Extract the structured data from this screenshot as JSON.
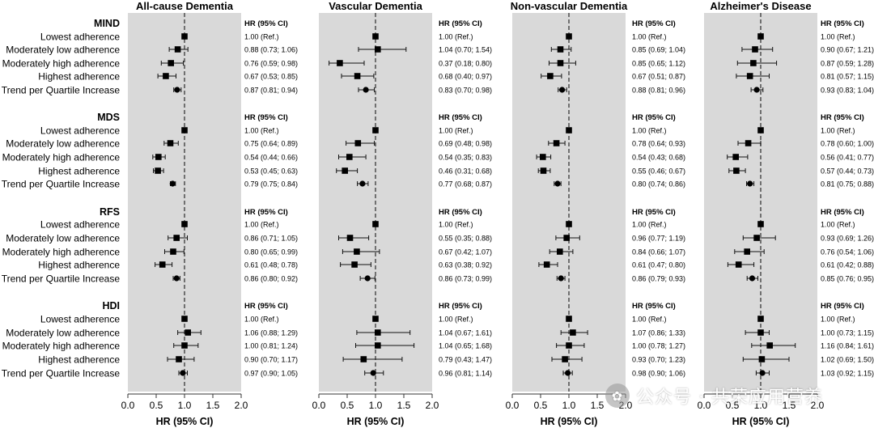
{
  "chart_data": {
    "type": "forest",
    "row_labels": [
      "Lowest adherence",
      "Moderately low adherence",
      "Moderately high adherence",
      "Highest adherence",
      "Trend per Quartile Increase"
    ],
    "groups": [
      "MIND",
      "MDS",
      "RFS",
      "HDI"
    ],
    "xlabel": "HR (95% CI)",
    "ci_header": "HR (95% CI)",
    "xlim": [
      0,
      2.0
    ],
    "ticks": [
      "0.0",
      "0.5",
      "1.0",
      "1.5",
      "2.0"
    ],
    "reference_line": 1.0,
    "panels": [
      {
        "title": "All-cause Dementia",
        "groups": [
          {
            "name": "MIND",
            "rows": [
              {
                "hr": 1.0,
                "lo": 1.0,
                "hi": 1.0,
                "text": "1.00 (Ref.)"
              },
              {
                "hr": 0.88,
                "lo": 0.73,
                "hi": 1.06,
                "text": "0.88 (0.73; 1.06)"
              },
              {
                "hr": 0.76,
                "lo": 0.59,
                "hi": 0.98,
                "text": "0.76 (0.59; 0.98)"
              },
              {
                "hr": 0.67,
                "lo": 0.53,
                "hi": 0.85,
                "text": "0.67 (0.53; 0.85)"
              },
              {
                "hr": 0.87,
                "lo": 0.81,
                "hi": 0.94,
                "text": "0.87 (0.81; 0.94)"
              }
            ]
          },
          {
            "name": "MDS",
            "rows": [
              {
                "hr": 1.0,
                "lo": 1.0,
                "hi": 1.0,
                "text": "1.00 (Ref.)"
              },
              {
                "hr": 0.75,
                "lo": 0.64,
                "hi": 0.89,
                "text": "0.75 (0.64; 0.89)"
              },
              {
                "hr": 0.54,
                "lo": 0.44,
                "hi": 0.66,
                "text": "0.54 (0.44; 0.66)"
              },
              {
                "hr": 0.53,
                "lo": 0.45,
                "hi": 0.63,
                "text": "0.53 (0.45; 0.63)"
              },
              {
                "hr": 0.79,
                "lo": 0.75,
                "hi": 0.84,
                "text": "0.79 (0.75; 0.84)"
              }
            ]
          },
          {
            "name": "RFS",
            "rows": [
              {
                "hr": 1.0,
                "lo": 1.0,
                "hi": 1.0,
                "text": "1.00 (Ref.)"
              },
              {
                "hr": 0.86,
                "lo": 0.71,
                "hi": 1.05,
                "text": "0.86 (0.71; 1.05)"
              },
              {
                "hr": 0.8,
                "lo": 0.65,
                "hi": 0.99,
                "text": "0.80 (0.65; 0.99)"
              },
              {
                "hr": 0.61,
                "lo": 0.48,
                "hi": 0.78,
                "text": "0.61 (0.48; 0.78)"
              },
              {
                "hr": 0.86,
                "lo": 0.8,
                "hi": 0.92,
                "text": "0.86 (0.80; 0.92)"
              }
            ]
          },
          {
            "name": "HDI",
            "rows": [
              {
                "hr": 1.0,
                "lo": 1.0,
                "hi": 1.0,
                "text": "1.00 (Ref.)"
              },
              {
                "hr": 1.06,
                "lo": 0.88,
                "hi": 1.29,
                "text": "1.06 (0.88; 1.29)"
              },
              {
                "hr": 1.0,
                "lo": 0.81,
                "hi": 1.24,
                "text": "1.00 (0.81; 1.24)"
              },
              {
                "hr": 0.9,
                "lo": 0.7,
                "hi": 1.17,
                "text": "0.90 (0.70; 1.17)"
              },
              {
                "hr": 0.97,
                "lo": 0.9,
                "hi": 1.05,
                "text": "0.97 (0.90; 1.05)"
              }
            ]
          }
        ]
      },
      {
        "title": "Vascular Dementia",
        "groups": [
          {
            "name": "MIND",
            "rows": [
              {
                "hr": 1.0,
                "lo": 1.0,
                "hi": 1.0,
                "text": "1.00 (Ref.)"
              },
              {
                "hr": 1.04,
                "lo": 0.7,
                "hi": 1.54,
                "text": "1.04 (0.70; 1.54)"
              },
              {
                "hr": 0.37,
                "lo": 0.18,
                "hi": 0.8,
                "text": "0.37 (0.18; 0.80)"
              },
              {
                "hr": 0.68,
                "lo": 0.4,
                "hi": 0.97,
                "text": "0.68 (0.40; 0.97)"
              },
              {
                "hr": 0.83,
                "lo": 0.7,
                "hi": 0.98,
                "text": "0.83 (0.70; 0.98)"
              }
            ]
          },
          {
            "name": "MDS",
            "rows": [
              {
                "hr": 1.0,
                "lo": 1.0,
                "hi": 1.0,
                "text": "1.00 (Ref.)"
              },
              {
                "hr": 0.69,
                "lo": 0.48,
                "hi": 0.98,
                "text": "0.69 (0.48; 0.98)"
              },
              {
                "hr": 0.54,
                "lo": 0.35,
                "hi": 0.83,
                "text": "0.54 (0.35; 0.83)"
              },
              {
                "hr": 0.46,
                "lo": 0.31,
                "hi": 0.68,
                "text": "0.46 (0.31; 0.68)"
              },
              {
                "hr": 0.77,
                "lo": 0.68,
                "hi": 0.87,
                "text": "0.77 (0.68; 0.87)"
              }
            ]
          },
          {
            "name": "RFS",
            "rows": [
              {
                "hr": 1.0,
                "lo": 1.0,
                "hi": 1.0,
                "text": "1.00 (Ref.)"
              },
              {
                "hr": 0.55,
                "lo": 0.35,
                "hi": 0.88,
                "text": "0.55 (0.35; 0.88)"
              },
              {
                "hr": 0.67,
                "lo": 0.42,
                "hi": 1.07,
                "text": "0.67 (0.42; 1.07)"
              },
              {
                "hr": 0.63,
                "lo": 0.38,
                "hi": 0.92,
                "text": "0.63 (0.38; 0.92)"
              },
              {
                "hr": 0.86,
                "lo": 0.73,
                "hi": 0.99,
                "text": "0.86 (0.73; 0.99)"
              }
            ]
          },
          {
            "name": "HDI",
            "rows": [
              {
                "hr": 1.0,
                "lo": 1.0,
                "hi": 1.0,
                "text": "1.00 (Ref.)"
              },
              {
                "hr": 1.04,
                "lo": 0.67,
                "hi": 1.61,
                "text": "1.04 (0.67; 1.61)"
              },
              {
                "hr": 1.04,
                "lo": 0.65,
                "hi": 1.68,
                "text": "1.04 (0.65; 1.68)"
              },
              {
                "hr": 0.79,
                "lo": 0.43,
                "hi": 1.47,
                "text": "0.79 (0.43; 1.47)"
              },
              {
                "hr": 0.96,
                "lo": 0.81,
                "hi": 1.14,
                "text": "0.96 (0.81; 1.14)"
              }
            ]
          }
        ]
      },
      {
        "title": "Non-vascular Dementia",
        "groups": [
          {
            "name": "MIND",
            "rows": [
              {
                "hr": 1.0,
                "lo": 1.0,
                "hi": 1.0,
                "text": "1.00 (Ref.)"
              },
              {
                "hr": 0.85,
                "lo": 0.69,
                "hi": 1.04,
                "text": "0.85 (0.69; 1.04)"
              },
              {
                "hr": 0.85,
                "lo": 0.65,
                "hi": 1.12,
                "text": "0.85 (0.65; 1.12)"
              },
              {
                "hr": 0.67,
                "lo": 0.51,
                "hi": 0.87,
                "text": "0.67 (0.51; 0.87)"
              },
              {
                "hr": 0.88,
                "lo": 0.81,
                "hi": 0.96,
                "text": "0.88 (0.81; 0.96)"
              }
            ]
          },
          {
            "name": "MDS",
            "rows": [
              {
                "hr": 1.0,
                "lo": 1.0,
                "hi": 1.0,
                "text": "1.00 (Ref.)"
              },
              {
                "hr": 0.78,
                "lo": 0.64,
                "hi": 0.93,
                "text": "0.78 (0.64; 0.93)"
              },
              {
                "hr": 0.54,
                "lo": 0.43,
                "hi": 0.68,
                "text": "0.54 (0.43; 0.68)"
              },
              {
                "hr": 0.55,
                "lo": 0.46,
                "hi": 0.67,
                "text": "0.55 (0.46; 0.67)"
              },
              {
                "hr": 0.8,
                "lo": 0.74,
                "hi": 0.86,
                "text": "0.80 (0.74; 0.86)"
              }
            ]
          },
          {
            "name": "RFS",
            "rows": [
              {
                "hr": 1.0,
                "lo": 1.0,
                "hi": 1.0,
                "text": "1.00 (Ref.)"
              },
              {
                "hr": 0.96,
                "lo": 0.77,
                "hi": 1.19,
                "text": "0.96 (0.77; 1.19)"
              },
              {
                "hr": 0.84,
                "lo": 0.66,
                "hi": 1.07,
                "text": "0.84 (0.66; 1.07)"
              },
              {
                "hr": 0.61,
                "lo": 0.47,
                "hi": 0.8,
                "text": "0.61 (0.47; 0.80)"
              },
              {
                "hr": 0.86,
                "lo": 0.79,
                "hi": 0.93,
                "text": "0.86 (0.79; 0.93)"
              }
            ]
          },
          {
            "name": "HDI",
            "rows": [
              {
                "hr": 1.0,
                "lo": 1.0,
                "hi": 1.0,
                "text": "1.00 (Ref.)"
              },
              {
                "hr": 1.07,
                "lo": 0.86,
                "hi": 1.33,
                "text": "1.07 (0.86; 1.33)"
              },
              {
                "hr": 1.0,
                "lo": 0.78,
                "hi": 1.27,
                "text": "1.00 (0.78; 1.27)"
              },
              {
                "hr": 0.93,
                "lo": 0.7,
                "hi": 1.23,
                "text": "0.93 (0.70; 1.23)"
              },
              {
                "hr": 0.98,
                "lo": 0.9,
                "hi": 1.06,
                "text": "0.98 (0.90; 1.06)"
              }
            ]
          }
        ]
      },
      {
        "title": "Alzheimer's Disease",
        "groups": [
          {
            "name": "MIND",
            "rows": [
              {
                "hr": 1.0,
                "lo": 1.0,
                "hi": 1.0,
                "text": "1.00 (Ref.)"
              },
              {
                "hr": 0.9,
                "lo": 0.67,
                "hi": 1.21,
                "text": "0.90 (0.67; 1.21)"
              },
              {
                "hr": 0.87,
                "lo": 0.59,
                "hi": 1.28,
                "text": "0.87 (0.59; 1.28)"
              },
              {
                "hr": 0.81,
                "lo": 0.57,
                "hi": 1.15,
                "text": "0.81 (0.57; 1.15)"
              },
              {
                "hr": 0.93,
                "lo": 0.83,
                "hi": 1.04,
                "text": "0.93 (0.83; 1.04)"
              }
            ]
          },
          {
            "name": "MDS",
            "rows": [
              {
                "hr": 1.0,
                "lo": 1.0,
                "hi": 1.0,
                "text": "1.00 (Ref.)"
              },
              {
                "hr": 0.78,
                "lo": 0.6,
                "hi": 1.0,
                "text": "0.78 (0.60; 1.00)"
              },
              {
                "hr": 0.56,
                "lo": 0.41,
                "hi": 0.77,
                "text": "0.56 (0.41; 0.77)"
              },
              {
                "hr": 0.57,
                "lo": 0.44,
                "hi": 0.73,
                "text": "0.57 (0.44; 0.73)"
              },
              {
                "hr": 0.81,
                "lo": 0.75,
                "hi": 0.88,
                "text": "0.81 (0.75; 0.88)"
              }
            ]
          },
          {
            "name": "RFS",
            "rows": [
              {
                "hr": 1.0,
                "lo": 1.0,
                "hi": 1.0,
                "text": "1.00 (Ref.)"
              },
              {
                "hr": 0.93,
                "lo": 0.69,
                "hi": 1.26,
                "text": "0.93 (0.69; 1.26)"
              },
              {
                "hr": 0.76,
                "lo": 0.54,
                "hi": 1.06,
                "text": "0.76 (0.54; 1.06)"
              },
              {
                "hr": 0.61,
                "lo": 0.42,
                "hi": 0.88,
                "text": "0.61 (0.42; 0.88)"
              },
              {
                "hr": 0.85,
                "lo": 0.76,
                "hi": 0.95,
                "text": "0.85 (0.76; 0.95)"
              }
            ]
          },
          {
            "name": "HDI",
            "rows": [
              {
                "hr": 1.0,
                "lo": 1.0,
                "hi": 1.0,
                "text": "1.00 (Ref.)"
              },
              {
                "hr": 1.0,
                "lo": 0.73,
                "hi": 1.15,
                "text": "1.00 (0.73; 1.15)"
              },
              {
                "hr": 1.16,
                "lo": 0.84,
                "hi": 1.61,
                "text": "1.16 (0.84; 1.61)"
              },
              {
                "hr": 1.02,
                "lo": 0.69,
                "hi": 1.5,
                "text": "1.02 (0.69; 1.50)"
              },
              {
                "hr": 1.03,
                "lo": 0.92,
                "hi": 1.15,
                "text": "1.03 (0.92; 1.15)"
              }
            ]
          }
        ]
      }
    ]
  },
  "watermark": {
    "text": "公众号 · 共荣应用营养",
    "icon": "wechat-icon"
  },
  "colors": {
    "panel_background": "#d9d9d9",
    "marker": "#000000",
    "reference_line": "#444444"
  }
}
